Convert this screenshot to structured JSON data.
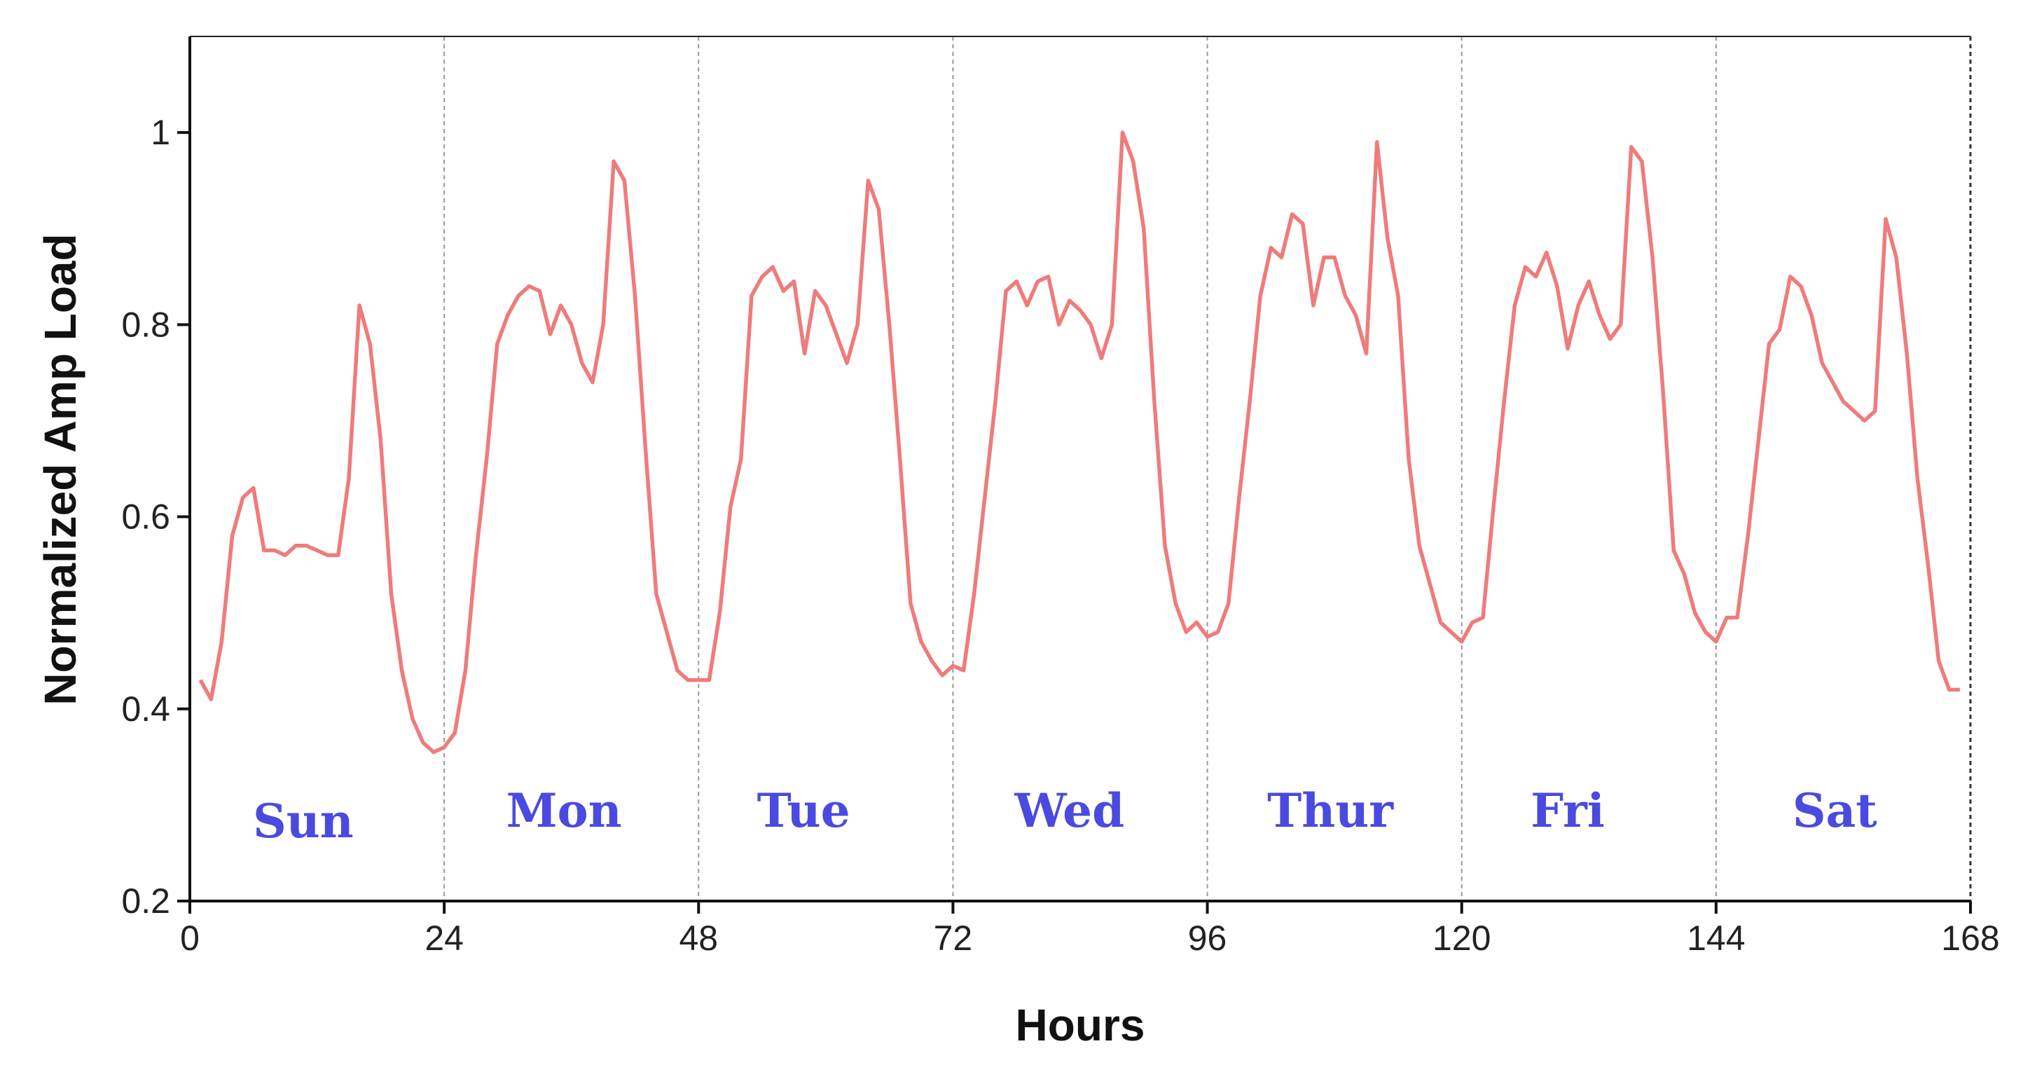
{
  "chart_data": {
    "type": "line",
    "title": "",
    "xlabel": "Hours",
    "ylabel": "Normalized Amp Load",
    "xlim": [
      0,
      168
    ],
    "ylim": [
      0.2,
      1.1
    ],
    "xticks": [
      0,
      24,
      48,
      72,
      96,
      120,
      144,
      168
    ],
    "yticks": [
      0.2,
      0.4,
      0.6,
      0.8,
      1
    ],
    "ytick_labels": [
      "0.2",
      "0.4",
      "0.6",
      "0.8",
      "1"
    ],
    "grid": "vertical dashed lines at day boundaries",
    "line_color": "#ef7b7b",
    "label_color": "#4a4ae0",
    "day_labels": [
      {
        "text": "Sun",
        "x": 10.7
      },
      {
        "text": "Mon",
        "x": 35.3
      },
      {
        "text": "Tue",
        "x": 57.9
      },
      {
        "text": "Wed",
        "x": 83
      },
      {
        "text": "Thur",
        "x": 107.6
      },
      {
        "text": "Fri",
        "x": 130
      },
      {
        "text": "Sat",
        "x": 155.2
      }
    ],
    "series": [
      {
        "x_start": 1,
        "values": [
          0.43,
          0.41,
          0.47,
          0.58,
          0.62,
          0.63,
          0.565,
          0.565,
          0.56,
          0.57,
          0.57,
          0.565,
          0.56,
          0.56,
          0.64,
          0.82,
          0.78,
          0.68,
          0.52,
          0.44,
          0.39,
          0.365,
          0.355,
          0.36,
          0.375,
          0.44,
          0.56,
          0.66,
          0.78,
          0.81,
          0.83,
          0.84,
          0.835,
          0.79,
          0.82,
          0.8,
          0.76,
          0.74,
          0.8,
          0.97,
          0.95,
          0.83,
          0.67,
          0.52,
          0.48,
          0.44,
          0.43,
          0.43,
          0.43,
          0.5,
          0.61,
          0.66,
          0.83,
          0.85,
          0.86,
          0.835,
          0.845,
          0.77,
          0.835,
          0.82,
          0.79,
          0.76,
          0.8,
          0.95,
          0.92,
          0.8,
          0.66,
          0.51,
          0.47,
          0.45,
          0.435,
          0.445,
          0.44,
          0.52,
          0.62,
          0.72,
          0.835,
          0.845,
          0.82,
          0.845,
          0.85,
          0.8,
          0.825,
          0.815,
          0.8,
          0.765,
          0.8,
          1.0,
          0.97,
          0.9,
          0.72,
          0.57,
          0.51,
          0.48,
          0.49,
          0.475,
          0.48,
          0.51,
          0.62,
          0.72,
          0.83,
          0.88,
          0.87,
          0.915,
          0.905,
          0.82,
          0.87,
          0.87,
          0.83,
          0.81,
          0.77,
          0.99,
          0.89,
          0.83,
          0.66,
          0.57,
          0.53,
          0.49,
          0.48,
          0.47,
          0.49,
          0.495,
          0.61,
          0.72,
          0.82,
          0.86,
          0.85,
          0.875,
          0.84,
          0.775,
          0.82,
          0.845,
          0.81,
          0.785,
          0.8,
          0.985,
          0.97,
          0.87,
          0.73,
          0.565,
          0.54,
          0.5,
          0.48,
          0.47,
          0.495,
          0.495,
          0.58,
          0.68,
          0.78,
          0.795,
          0.85,
          0.84,
          0.81,
          0.76,
          0.74,
          0.72,
          0.71,
          0.7,
          0.71,
          0.91,
          0.87,
          0.77,
          0.64,
          0.55,
          0.45,
          0.42,
          0.42
        ]
      }
    ]
  }
}
